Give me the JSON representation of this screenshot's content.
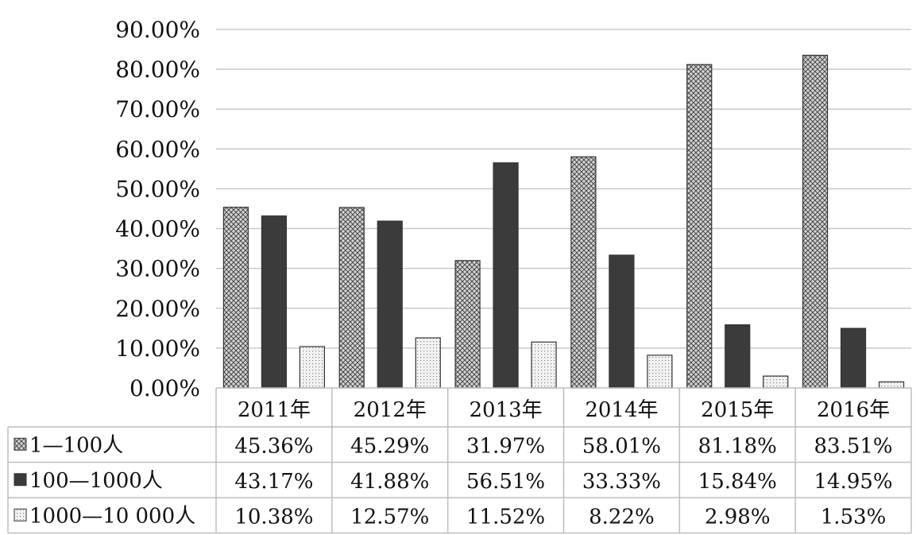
{
  "chart_data": {
    "type": "bar",
    "title": "",
    "xlabel": "",
    "ylabel": "",
    "ylim": [
      0,
      90
    ],
    "y_ticks": [
      "0.00%",
      "10.00%",
      "20.00%",
      "30.00%",
      "40.00%",
      "50.00%",
      "60.00%",
      "70.00%",
      "80.00%",
      "90.00%"
    ],
    "grid": true,
    "legend": "data-table",
    "categories": [
      "2011年",
      "2012年",
      "2013年",
      "2014年",
      "2015年",
      "2016年"
    ],
    "series": [
      {
        "name": "1—100人",
        "values": [
          45.36,
          45.29,
          31.97,
          58.01,
          81.18,
          83.51
        ],
        "labels": [
          "45.36%",
          "45.29%",
          "31.97%",
          "58.01%",
          "81.18%",
          "83.51%"
        ],
        "pattern": "crosshatch",
        "color": "#c8c8c8"
      },
      {
        "name": "100—1000人",
        "values": [
          43.17,
          41.88,
          56.51,
          33.33,
          15.84,
          14.95
        ],
        "labels": [
          "43.17%",
          "41.88%",
          "56.51%",
          "33.33%",
          "15.84%",
          "14.95%"
        ],
        "pattern": "solid",
        "color": "#3a3a3a"
      },
      {
        "name": "1000—10 000人",
        "values": [
          10.38,
          12.57,
          11.52,
          8.22,
          2.98,
          1.53
        ],
        "labels": [
          "10.38%",
          "12.57%",
          "11.52%",
          "8.22%",
          "2.98%",
          "1.53%"
        ],
        "pattern": "dots",
        "color": "#e6e6e6"
      }
    ]
  }
}
